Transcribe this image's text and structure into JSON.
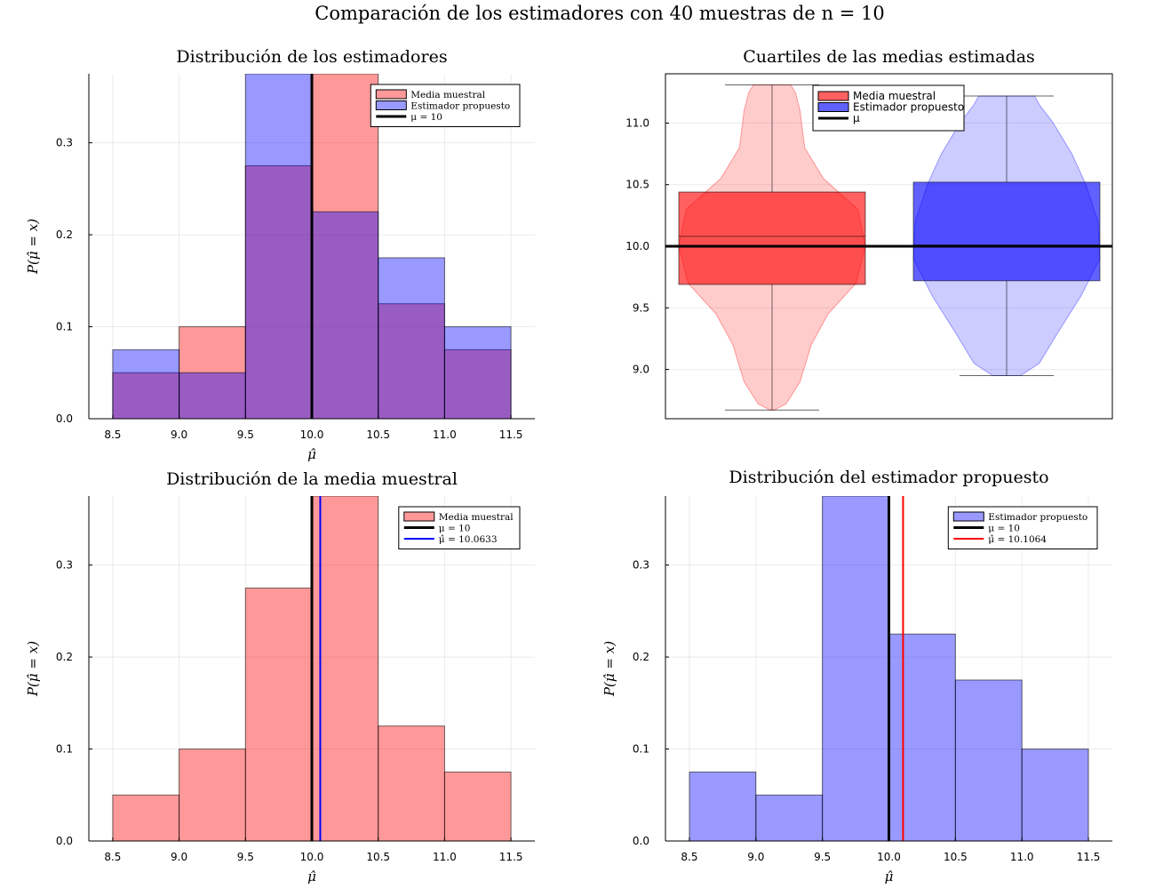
{
  "figure": {
    "suptitle": "Comparación de los estimadores con 40 muestras de n = 10"
  },
  "colors": {
    "red": "#ff0000",
    "blue": "#0000ff",
    "black": "#000000",
    "purple_overlap": "#9955c0"
  },
  "chart_data": [
    {
      "type": "bar",
      "title": "Distribución de los estimadores",
      "xlabel": "μ̂",
      "ylabel": "P(μ̂ = x)",
      "xlim": [
        8.32,
        11.68
      ],
      "ylim": [
        0,
        0.375
      ],
      "xticks": [
        "8.5",
        "9.0",
        "9.5",
        "10.0",
        "10.5",
        "11.0",
        "11.5"
      ],
      "yticks": [
        "0.0",
        "0.1",
        "0.2",
        "0.3"
      ],
      "bin_edges": [
        8.5,
        9.0,
        9.5,
        10.0,
        10.5,
        11.0,
        11.5
      ],
      "series": [
        {
          "name": "Media muestral",
          "color": "#ff0000",
          "values": [
            0.05,
            0.1,
            0.275,
            0.375,
            0.125,
            0.075
          ]
        },
        {
          "name": "Estimador propuesto",
          "color": "#0000ff",
          "values": [
            0.075,
            0.05,
            0.375,
            0.225,
            0.175,
            0.1
          ]
        }
      ],
      "vlines": [
        {
          "name": "μ = 10",
          "x": 10.0,
          "color": "#000000"
        }
      ],
      "legend": "top-right",
      "grid": true
    },
    {
      "type": "box",
      "title": "Cuartiles de las medias estimadas",
      "ylim": [
        8.6,
        11.4
      ],
      "yticks": [
        "9.0",
        "9.5",
        "10.0",
        "10.5",
        "11.0"
      ],
      "series": [
        {
          "name": "Media muestral",
          "color": "#ff0000",
          "min": 8.67,
          "q1": 9.69,
          "median": 10.08,
          "q3": 10.44,
          "max": 11.31
        },
        {
          "name": "Estimador propuesto",
          "color": "#0000ff",
          "min": 8.95,
          "q1": 9.72,
          "median": 10.01,
          "q3": 10.52,
          "max": 11.22
        }
      ],
      "hlines": [
        {
          "name": "μ",
          "y": 10.0,
          "color": "#000000"
        }
      ],
      "legend": "top-left",
      "grid": true
    },
    {
      "type": "bar",
      "title": "Distribución de la media muestral",
      "xlabel": "μ̂",
      "ylabel": "P(μ̂ = x)",
      "xlim": [
        8.32,
        11.68
      ],
      "ylim": [
        0,
        0.375
      ],
      "xticks": [
        "8.5",
        "9.0",
        "9.5",
        "10.0",
        "10.5",
        "11.0",
        "11.5"
      ],
      "yticks": [
        "0.0",
        "0.1",
        "0.2",
        "0.3"
      ],
      "bin_edges": [
        8.5,
        9.0,
        9.5,
        10.0,
        10.5,
        11.0,
        11.5
      ],
      "series": [
        {
          "name": "Media muestral",
          "color": "#ff0000",
          "values": [
            0.05,
            0.1,
            0.275,
            0.375,
            0.125,
            0.075
          ]
        }
      ],
      "vlines": [
        {
          "name": "μ = 10",
          "x": 10.0,
          "color": "#000000"
        },
        {
          "name": "μ̂ = 10.0633",
          "x": 10.0633,
          "color": "#0000ff"
        }
      ],
      "legend": "top-right",
      "grid": true
    },
    {
      "type": "bar",
      "title": "Distribución del estimador propuesto",
      "xlabel": "μ̂",
      "ylabel": "P(μ̂ = x)",
      "xlim": [
        8.32,
        11.68
      ],
      "ylim": [
        0,
        0.375
      ],
      "xticks": [
        "8.5",
        "9.0",
        "9.5",
        "10.0",
        "10.5",
        "11.0",
        "11.5"
      ],
      "yticks": [
        "0.0",
        "0.1",
        "0.2",
        "0.3"
      ],
      "bin_edges": [
        8.5,
        9.0,
        9.5,
        10.0,
        10.5,
        11.0,
        11.5
      ],
      "series": [
        {
          "name": "Estimador propuesto",
          "color": "#0000ff",
          "values": [
            0.075,
            0.05,
            0.375,
            0.225,
            0.175,
            0.1
          ]
        }
      ],
      "vlines": [
        {
          "name": "μ = 10",
          "x": 10.0,
          "color": "#000000"
        },
        {
          "name": "μ̂ = 10.1064",
          "x": 10.1064,
          "color": "#ff0000"
        }
      ],
      "legend": "top-right",
      "grid": true
    }
  ]
}
